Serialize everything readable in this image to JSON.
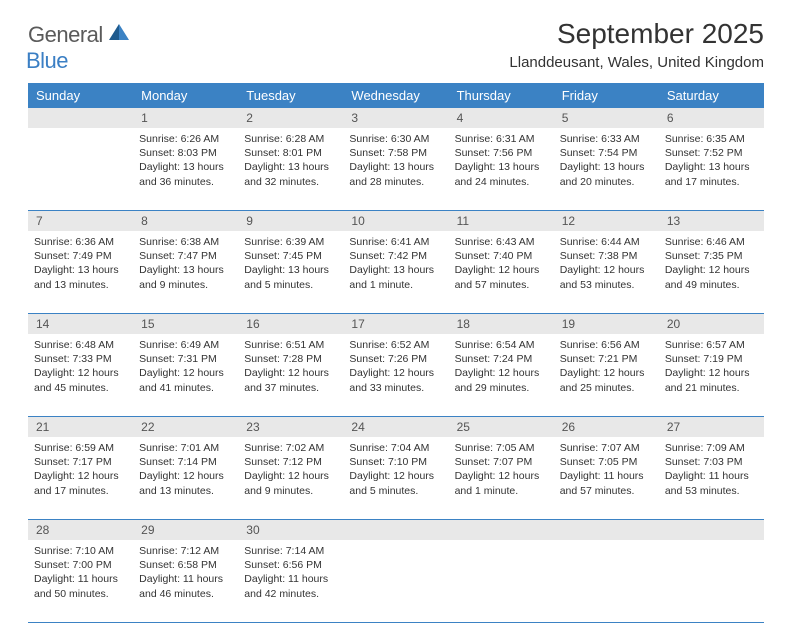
{
  "logo": {
    "text_general": "General",
    "text_blue": "Blue"
  },
  "title": "September 2025",
  "location": "Llanddeusant, Wales, United Kingdom",
  "weekdays": [
    "Sunday",
    "Monday",
    "Tuesday",
    "Wednesday",
    "Thursday",
    "Friday",
    "Saturday"
  ],
  "colors": {
    "header_bg": "#3b82c4",
    "day_num_bg": "#e8e8e8",
    "text": "#333333",
    "border": "#3b82c4"
  },
  "weeks": [
    {
      "numbers": [
        "",
        "1",
        "2",
        "3",
        "4",
        "5",
        "6"
      ],
      "days": [
        {
          "sunrise": "",
          "sunset": "",
          "daylight": ""
        },
        {
          "sunrise": "Sunrise: 6:26 AM",
          "sunset": "Sunset: 8:03 PM",
          "daylight": "Daylight: 13 hours and 36 minutes."
        },
        {
          "sunrise": "Sunrise: 6:28 AM",
          "sunset": "Sunset: 8:01 PM",
          "daylight": "Daylight: 13 hours and 32 minutes."
        },
        {
          "sunrise": "Sunrise: 6:30 AM",
          "sunset": "Sunset: 7:58 PM",
          "daylight": "Daylight: 13 hours and 28 minutes."
        },
        {
          "sunrise": "Sunrise: 6:31 AM",
          "sunset": "Sunset: 7:56 PM",
          "daylight": "Daylight: 13 hours and 24 minutes."
        },
        {
          "sunrise": "Sunrise: 6:33 AM",
          "sunset": "Sunset: 7:54 PM",
          "daylight": "Daylight: 13 hours and 20 minutes."
        },
        {
          "sunrise": "Sunrise: 6:35 AM",
          "sunset": "Sunset: 7:52 PM",
          "daylight": "Daylight: 13 hours and 17 minutes."
        }
      ]
    },
    {
      "numbers": [
        "7",
        "8",
        "9",
        "10",
        "11",
        "12",
        "13"
      ],
      "days": [
        {
          "sunrise": "Sunrise: 6:36 AM",
          "sunset": "Sunset: 7:49 PM",
          "daylight": "Daylight: 13 hours and 13 minutes."
        },
        {
          "sunrise": "Sunrise: 6:38 AM",
          "sunset": "Sunset: 7:47 PM",
          "daylight": "Daylight: 13 hours and 9 minutes."
        },
        {
          "sunrise": "Sunrise: 6:39 AM",
          "sunset": "Sunset: 7:45 PM",
          "daylight": "Daylight: 13 hours and 5 minutes."
        },
        {
          "sunrise": "Sunrise: 6:41 AM",
          "sunset": "Sunset: 7:42 PM",
          "daylight": "Daylight: 13 hours and 1 minute."
        },
        {
          "sunrise": "Sunrise: 6:43 AM",
          "sunset": "Sunset: 7:40 PM",
          "daylight": "Daylight: 12 hours and 57 minutes."
        },
        {
          "sunrise": "Sunrise: 6:44 AM",
          "sunset": "Sunset: 7:38 PM",
          "daylight": "Daylight: 12 hours and 53 minutes."
        },
        {
          "sunrise": "Sunrise: 6:46 AM",
          "sunset": "Sunset: 7:35 PM",
          "daylight": "Daylight: 12 hours and 49 minutes."
        }
      ]
    },
    {
      "numbers": [
        "14",
        "15",
        "16",
        "17",
        "18",
        "19",
        "20"
      ],
      "days": [
        {
          "sunrise": "Sunrise: 6:48 AM",
          "sunset": "Sunset: 7:33 PM",
          "daylight": "Daylight: 12 hours and 45 minutes."
        },
        {
          "sunrise": "Sunrise: 6:49 AM",
          "sunset": "Sunset: 7:31 PM",
          "daylight": "Daylight: 12 hours and 41 minutes."
        },
        {
          "sunrise": "Sunrise: 6:51 AM",
          "sunset": "Sunset: 7:28 PM",
          "daylight": "Daylight: 12 hours and 37 minutes."
        },
        {
          "sunrise": "Sunrise: 6:52 AM",
          "sunset": "Sunset: 7:26 PM",
          "daylight": "Daylight: 12 hours and 33 minutes."
        },
        {
          "sunrise": "Sunrise: 6:54 AM",
          "sunset": "Sunset: 7:24 PM",
          "daylight": "Daylight: 12 hours and 29 minutes."
        },
        {
          "sunrise": "Sunrise: 6:56 AM",
          "sunset": "Sunset: 7:21 PM",
          "daylight": "Daylight: 12 hours and 25 minutes."
        },
        {
          "sunrise": "Sunrise: 6:57 AM",
          "sunset": "Sunset: 7:19 PM",
          "daylight": "Daylight: 12 hours and 21 minutes."
        }
      ]
    },
    {
      "numbers": [
        "21",
        "22",
        "23",
        "24",
        "25",
        "26",
        "27"
      ],
      "days": [
        {
          "sunrise": "Sunrise: 6:59 AM",
          "sunset": "Sunset: 7:17 PM",
          "daylight": "Daylight: 12 hours and 17 minutes."
        },
        {
          "sunrise": "Sunrise: 7:01 AM",
          "sunset": "Sunset: 7:14 PM",
          "daylight": "Daylight: 12 hours and 13 minutes."
        },
        {
          "sunrise": "Sunrise: 7:02 AM",
          "sunset": "Sunset: 7:12 PM",
          "daylight": "Daylight: 12 hours and 9 minutes."
        },
        {
          "sunrise": "Sunrise: 7:04 AM",
          "sunset": "Sunset: 7:10 PM",
          "daylight": "Daylight: 12 hours and 5 minutes."
        },
        {
          "sunrise": "Sunrise: 7:05 AM",
          "sunset": "Sunset: 7:07 PM",
          "daylight": "Daylight: 12 hours and 1 minute."
        },
        {
          "sunrise": "Sunrise: 7:07 AM",
          "sunset": "Sunset: 7:05 PM",
          "daylight": "Daylight: 11 hours and 57 minutes."
        },
        {
          "sunrise": "Sunrise: 7:09 AM",
          "sunset": "Sunset: 7:03 PM",
          "daylight": "Daylight: 11 hours and 53 minutes."
        }
      ]
    },
    {
      "numbers": [
        "28",
        "29",
        "30",
        "",
        "",
        "",
        ""
      ],
      "days": [
        {
          "sunrise": "Sunrise: 7:10 AM",
          "sunset": "Sunset: 7:00 PM",
          "daylight": "Daylight: 11 hours and 50 minutes."
        },
        {
          "sunrise": "Sunrise: 7:12 AM",
          "sunset": "Sunset: 6:58 PM",
          "daylight": "Daylight: 11 hours and 46 minutes."
        },
        {
          "sunrise": "Sunrise: 7:14 AM",
          "sunset": "Sunset: 6:56 PM",
          "daylight": "Daylight: 11 hours and 42 minutes."
        },
        {
          "sunrise": "",
          "sunset": "",
          "daylight": ""
        },
        {
          "sunrise": "",
          "sunset": "",
          "daylight": ""
        },
        {
          "sunrise": "",
          "sunset": "",
          "daylight": ""
        },
        {
          "sunrise": "",
          "sunset": "",
          "daylight": ""
        }
      ]
    }
  ]
}
